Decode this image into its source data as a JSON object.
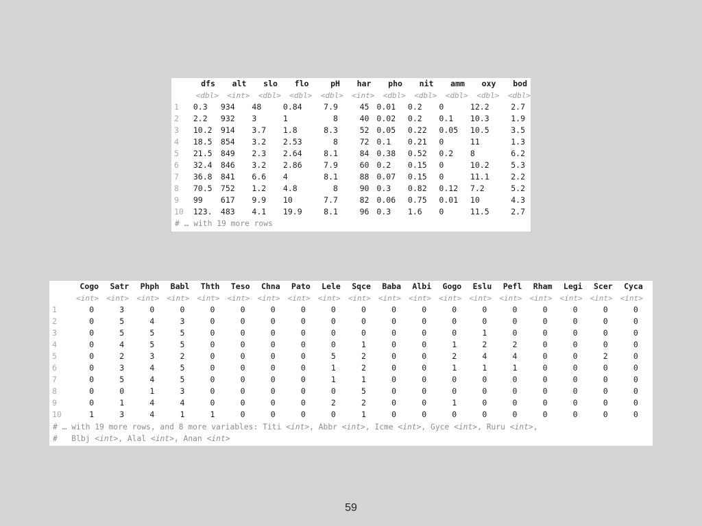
{
  "table1": {
    "columns": [
      "dfs",
      "alt",
      "slo",
      "flo",
      "pH",
      "har",
      "pho",
      "nit",
      "amm",
      "oxy",
      "bod"
    ],
    "types": [
      "<dbl>",
      "<int>",
      "<dbl>",
      "<dbl>",
      "<dbl>",
      "<int>",
      "<dbl>",
      "<dbl>",
      "<dbl>",
      "<dbl>",
      "<dbl>"
    ],
    "rows": [
      [
        "1",
        "0.3",
        "934",
        "48",
        "0.84",
        "7.9",
        "45",
        "0.01",
        "0.2",
        "0",
        "12.2",
        "2.7"
      ],
      [
        "2",
        "2.2",
        "932",
        "3",
        "1",
        "8",
        "40",
        "0.02",
        "0.2",
        "0.1",
        "10.3",
        "1.9"
      ],
      [
        "3",
        "10.2",
        "914",
        "3.7",
        "1.8",
        "8.3",
        "52",
        "0.05",
        "0.22",
        "0.05",
        "10.5",
        "3.5"
      ],
      [
        "4",
        "18.5",
        "854",
        "3.2",
        "2.53",
        "8",
        "72",
        "0.1",
        "0.21",
        "0",
        "11",
        "1.3"
      ],
      [
        "5",
        "21.5",
        "849",
        "2.3",
        "2.64",
        "8.1",
        "84",
        "0.38",
        "0.52",
        "0.2",
        "8",
        "6.2"
      ],
      [
        "6",
        "32.4",
        "846",
        "3.2",
        "2.86",
        "7.9",
        "60",
        "0.2",
        "0.15",
        "0",
        "10.2",
        "5.3"
      ],
      [
        "7",
        "36.8",
        "841",
        "6.6",
        "4",
        "8.1",
        "88",
        "0.07",
        "0.15",
        "0",
        "11.1",
        "2.2"
      ],
      [
        "8",
        "70.5",
        "752",
        "1.2",
        "4.8",
        "8",
        "90",
        "0.3",
        "0.82",
        "0.12",
        "7.2",
        "5.2"
      ],
      [
        "9",
        "99",
        "617",
        "9.9",
        "10",
        "7.7",
        "82",
        "0.06",
        "0.75",
        "0.01",
        "10",
        "4.3"
      ],
      [
        "10",
        "123.",
        "483",
        "4.1",
        "19.9",
        "8.1",
        "96",
        "0.3",
        "1.6",
        "0",
        "11.5",
        "2.7"
      ]
    ],
    "footer": "# … with 19 more rows"
  },
  "table2": {
    "columns": [
      "Cogo",
      "Satr",
      "Phph",
      "Babl",
      "Thth",
      "Teso",
      "Chna",
      "Pato",
      "Lele",
      "Sqce",
      "Baba",
      "Albi",
      "Gogo",
      "Eslu",
      "Pefl",
      "Rham",
      "Legi",
      "Scer",
      "Cyca"
    ],
    "type": "<int>",
    "rows": [
      [
        "1",
        "0",
        "3",
        "0",
        "0",
        "0",
        "0",
        "0",
        "0",
        "0",
        "0",
        "0",
        "0",
        "0",
        "0",
        "0",
        "0",
        "0",
        "0",
        "0"
      ],
      [
        "2",
        "0",
        "5",
        "4",
        "3",
        "0",
        "0",
        "0",
        "0",
        "0",
        "0",
        "0",
        "0",
        "0",
        "0",
        "0",
        "0",
        "0",
        "0",
        "0"
      ],
      [
        "3",
        "0",
        "5",
        "5",
        "5",
        "0",
        "0",
        "0",
        "0",
        "0",
        "0",
        "0",
        "0",
        "0",
        "1",
        "0",
        "0",
        "0",
        "0",
        "0"
      ],
      [
        "4",
        "0",
        "4",
        "5",
        "5",
        "0",
        "0",
        "0",
        "0",
        "0",
        "1",
        "0",
        "0",
        "1",
        "2",
        "2",
        "0",
        "0",
        "0",
        "0"
      ],
      [
        "5",
        "0",
        "2",
        "3",
        "2",
        "0",
        "0",
        "0",
        "0",
        "5",
        "2",
        "0",
        "0",
        "2",
        "4",
        "4",
        "0",
        "0",
        "2",
        "0"
      ],
      [
        "6",
        "0",
        "3",
        "4",
        "5",
        "0",
        "0",
        "0",
        "0",
        "1",
        "2",
        "0",
        "0",
        "1",
        "1",
        "1",
        "0",
        "0",
        "0",
        "0"
      ],
      [
        "7",
        "0",
        "5",
        "4",
        "5",
        "0",
        "0",
        "0",
        "0",
        "1",
        "1",
        "0",
        "0",
        "0",
        "0",
        "0",
        "0",
        "0",
        "0",
        "0"
      ],
      [
        "8",
        "0",
        "0",
        "1",
        "3",
        "0",
        "0",
        "0",
        "0",
        "0",
        "5",
        "0",
        "0",
        "0",
        "0",
        "0",
        "0",
        "0",
        "0",
        "0"
      ],
      [
        "9",
        "0",
        "1",
        "4",
        "4",
        "0",
        "0",
        "0",
        "0",
        "2",
        "2",
        "0",
        "0",
        "1",
        "0",
        "0",
        "0",
        "0",
        "0",
        "0"
      ],
      [
        "10",
        "1",
        "3",
        "4",
        "1",
        "1",
        "0",
        "0",
        "0",
        "0",
        "1",
        "0",
        "0",
        "0",
        "0",
        "0",
        "0",
        "0",
        "0",
        "0"
      ]
    ],
    "footer_line1_prefix": "# … with 19 more rows, and 8 more variables: ",
    "footer_line1_vars": [
      {
        "name": "Titi",
        "type": "<int>"
      },
      {
        "name": "Abbr",
        "type": "<int>"
      },
      {
        "name": "Icme",
        "type": "<int>"
      },
      {
        "name": "Gyce",
        "type": "<int>"
      },
      {
        "name": "Ruru",
        "type": "<int>"
      }
    ],
    "footer_line2_prefix": "#   ",
    "footer_line2_vars": [
      {
        "name": "Blbj",
        "type": "<int>"
      },
      {
        "name": "Alal",
        "type": "<int>"
      },
      {
        "name": "Anan",
        "type": "<int>"
      }
    ]
  },
  "page_number": "59"
}
